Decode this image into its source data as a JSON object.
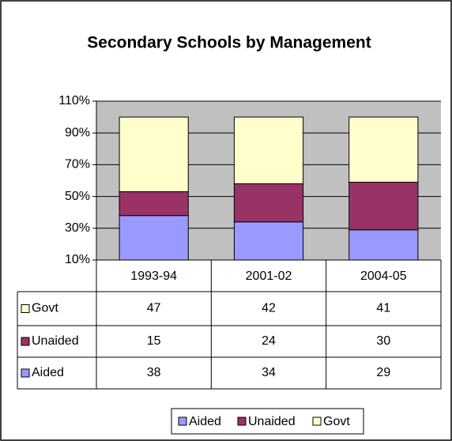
{
  "chart_data": {
    "type": "stacked_bar",
    "title": "Secondary Schools by Management",
    "categories": [
      "1993-94",
      "2001-02",
      "2004-05"
    ],
    "series": [
      {
        "name": "Aided",
        "color": "#9999ff",
        "values": [
          38,
          34,
          29
        ]
      },
      {
        "name": "Unaided",
        "color": "#993366",
        "values": [
          15,
          24,
          30
        ]
      },
      {
        "name": "Govt",
        "color": "#ffffcc",
        "values": [
          47,
          42,
          41
        ]
      }
    ],
    "ylim": [
      10,
      110
    ],
    "yticks": [
      {
        "value": 10,
        "label": "10%"
      },
      {
        "value": 30,
        "label": "30%"
      },
      {
        "value": 50,
        "label": "50%"
      },
      {
        "value": 70,
        "label": "70%"
      },
      {
        "value": 90,
        "label": "90%"
      },
      {
        "value": 110,
        "label": "110%"
      }
    ],
    "grid": true,
    "legend": "bottom"
  }
}
